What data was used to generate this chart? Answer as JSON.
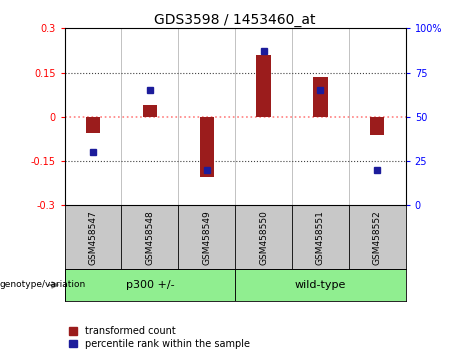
{
  "title": "GDS3598 / 1453460_at",
  "samples": [
    "GSM458547",
    "GSM458548",
    "GSM458549",
    "GSM458550",
    "GSM458551",
    "GSM458552"
  ],
  "bar_values": [
    -0.055,
    0.04,
    -0.205,
    0.21,
    0.135,
    -0.06
  ],
  "percentile_values": [
    30,
    65,
    20,
    87,
    65,
    20
  ],
  "ylim_left": [
    -0.3,
    0.3
  ],
  "ylim_right": [
    0,
    100
  ],
  "yticks_left": [
    -0.3,
    -0.15,
    0,
    0.15,
    0.3
  ],
  "yticks_right": [
    0,
    25,
    50,
    75,
    100
  ],
  "bar_color": "#9B1C1C",
  "dot_color": "#1C1C9B",
  "zero_line_color": "#FF8080",
  "dotted_line_color": "#404040",
  "label_bg_color": "#C8C8C8",
  "group_box_color": "#90EE90",
  "genotype_label": "genotype/variation",
  "groups": [
    {
      "label": "p300 +/-",
      "start": 0,
      "end": 2
    },
    {
      "label": "wild-type",
      "start": 3,
      "end": 5
    }
  ],
  "legend_items": [
    {
      "label": "transformed count",
      "color": "#9B1C1C"
    },
    {
      "label": "percentile rank within the sample",
      "color": "#1C1C9B"
    }
  ]
}
